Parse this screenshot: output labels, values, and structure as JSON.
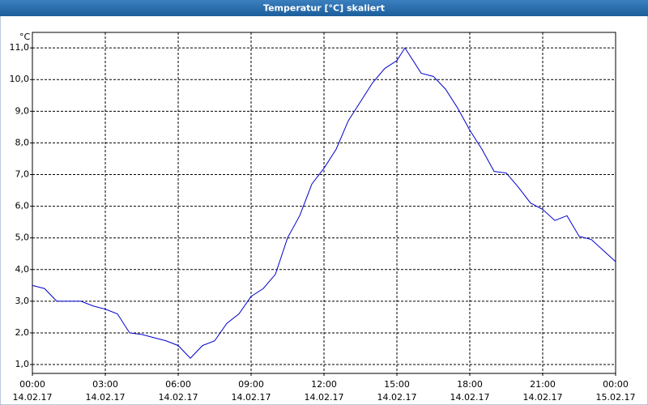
{
  "chart_data": {
    "type": "line",
    "title": "Temperatur [°C] skaliert",
    "y_unit": "°C",
    "x": [
      0,
      0.5,
      1,
      1.5,
      2,
      2.5,
      3,
      3.5,
      4,
      4.5,
      5,
      5.5,
      6,
      6.5,
      7,
      7.5,
      8,
      8.5,
      9,
      9.5,
      10,
      10.5,
      11,
      11.5,
      12,
      12.5,
      13,
      13.5,
      14,
      14.5,
      15,
      15.33,
      15.5,
      16,
      16.5,
      17,
      17.5,
      18,
      18.5,
      19,
      19.5,
      20,
      20.5,
      21,
      21.5,
      22,
      22.5,
      23,
      23.5,
      24
    ],
    "values": [
      3.5,
      3.4,
      3.0,
      3.0,
      3.0,
      2.85,
      2.75,
      2.6,
      2.0,
      1.95,
      1.85,
      1.75,
      1.6,
      1.2,
      1.6,
      1.75,
      2.3,
      2.6,
      3.15,
      3.4,
      3.85,
      5.0,
      5.7,
      6.7,
      7.2,
      7.8,
      8.7,
      9.3,
      9.9,
      10.35,
      10.6,
      11.0,
      10.8,
      10.2,
      10.1,
      9.7,
      9.1,
      8.4,
      7.8,
      7.1,
      7.05,
      6.6,
      6.1,
      5.9,
      5.55,
      5.7,
      5.05,
      4.95,
      4.6,
      4.25
    ],
    "color": "#0000cc",
    "xlim": [
      0,
      24
    ],
    "xticks": [
      {
        "value": 0,
        "label": "00:00",
        "date": "14.02.17"
      },
      {
        "value": 3,
        "label": "03:00",
        "date": "14.02.17"
      },
      {
        "value": 6,
        "label": "06:00",
        "date": "14.02.17"
      },
      {
        "value": 9,
        "label": "09:00",
        "date": "14.02.17"
      },
      {
        "value": 12,
        "label": "12:00",
        "date": "14.02.17"
      },
      {
        "value": 15,
        "label": "15:00",
        "date": "14.02.17"
      },
      {
        "value": 18,
        "label": "18:00",
        "date": "14.02.17"
      },
      {
        "value": 21,
        "label": "21:00",
        "date": "14.02.17"
      },
      {
        "value": 24,
        "label": "00:00",
        "date": "15.02.17"
      }
    ],
    "ylim": [
      0.72,
      11.49
    ],
    "yticks": [
      {
        "value": 1,
        "label": "1,0"
      },
      {
        "value": 2,
        "label": "2,0"
      },
      {
        "value": 3,
        "label": "3,0"
      },
      {
        "value": 4,
        "label": "4,0"
      },
      {
        "value": 5,
        "label": "5,0"
      },
      {
        "value": 6,
        "label": "6,0"
      },
      {
        "value": 7,
        "label": "7,0"
      },
      {
        "value": 8,
        "label": "8,0"
      },
      {
        "value": 9,
        "label": "9,0"
      },
      {
        "value": 10,
        "label": "10,0"
      },
      {
        "value": 11,
        "label": "11,0"
      }
    ],
    "grid": true
  }
}
